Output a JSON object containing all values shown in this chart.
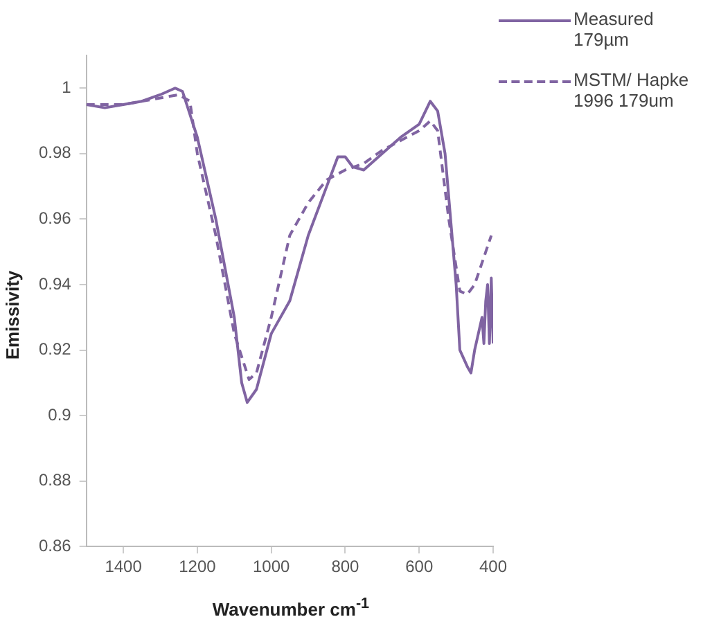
{
  "chart_data": {
    "type": "line",
    "xlabel": "Wavenumber cm$^{-1}$",
    "ylabel": "Emissivity",
    "xlim": [
      1500,
      400
    ],
    "xticks": [
      1400,
      1200,
      1000,
      800,
      600,
      400
    ],
    "ylim": [
      0.86,
      1.01
    ],
    "yticks": [
      0.86,
      0.88,
      0.9,
      0.92,
      0.94,
      0.96,
      0.98,
      1
    ],
    "grid": false,
    "legend": "top right",
    "marker": "none",
    "series": [
      {
        "name": "Measured 179µm",
        "color": "#8064a2",
        "line_style": "solid",
        "x": [
          1500,
          1450,
          1400,
          1350,
          1300,
          1260,
          1240,
          1200,
          1150,
          1100,
          1080,
          1065,
          1040,
          1000,
          950,
          900,
          850,
          820,
          800,
          780,
          750,
          700,
          650,
          600,
          570,
          550,
          530,
          500,
          490,
          470,
          460,
          450,
          440,
          430,
          425,
          420,
          415,
          410,
          405,
          400
        ],
        "values": [
          0.995,
          0.994,
          0.995,
          0.996,
          0.998,
          1.0,
          0.999,
          0.985,
          0.96,
          0.93,
          0.91,
          0.904,
          0.908,
          0.925,
          0.935,
          0.955,
          0.97,
          0.979,
          0.979,
          0.976,
          0.975,
          0.98,
          0.985,
          0.989,
          0.996,
          0.993,
          0.98,
          0.94,
          0.92,
          0.915,
          0.913,
          0.92,
          0.925,
          0.93,
          0.922,
          0.935,
          0.94,
          0.922,
          0.942,
          0.922
        ]
      },
      {
        "name": "MSTM/ Hapke 1996 179um",
        "color": "#8064a2",
        "line_style": "dashed",
        "x": [
          1500,
          1400,
          1300,
          1250,
          1220,
          1200,
          1150,
          1100,
          1060,
          1040,
          1000,
          950,
          900,
          850,
          800,
          750,
          700,
          600,
          570,
          550,
          520,
          490,
          470,
          450,
          420,
          405
        ],
        "values": [
          0.995,
          0.995,
          0.997,
          0.998,
          0.996,
          0.98,
          0.955,
          0.925,
          0.911,
          0.913,
          0.93,
          0.955,
          0.965,
          0.972,
          0.975,
          0.977,
          0.981,
          0.987,
          0.99,
          0.987,
          0.96,
          0.938,
          0.937,
          0.94,
          0.95,
          0.955
        ]
      }
    ]
  }
}
